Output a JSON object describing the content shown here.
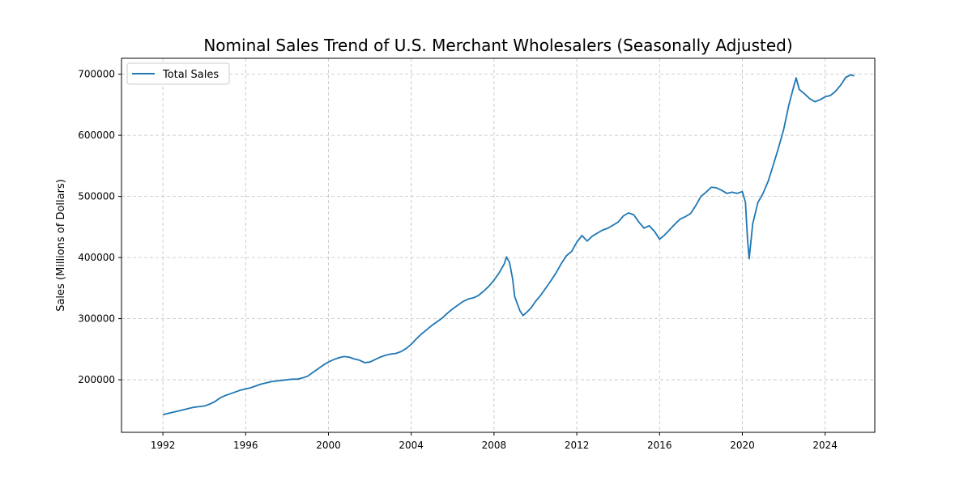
{
  "chart_data": {
    "type": "line",
    "title": "Nominal Sales Trend of U.S. Merchant Wholesalers (Seasonally Adjusted)",
    "xlabel": "",
    "ylabel": "Sales (Millions of Dollars)",
    "xlim": [
      1990.0,
      2026.4
    ],
    "ylim": [
      114000,
      726000
    ],
    "grid": true,
    "grid_style": "dashed",
    "legend_position": "top-left",
    "x_ticks": [
      1992,
      1996,
      2000,
      2004,
      2008,
      2012,
      2016,
      2020,
      2024
    ],
    "x_tick_labels": [
      "1992",
      "1996",
      "2000",
      "2004",
      "2008",
      "2012",
      "2016",
      "2020",
      "2024"
    ],
    "y_ticks": [
      200000,
      300000,
      400000,
      500000,
      600000,
      700000
    ],
    "y_tick_labels": [
      "200000",
      "300000",
      "400000",
      "500000",
      "600000",
      "700000"
    ],
    "series": [
      {
        "name": "Total Sales",
        "color": "#1f77b4",
        "points": [
          [
            1992.0,
            143000
          ],
          [
            1992.25,
            145000
          ],
          [
            1992.5,
            147000
          ],
          [
            1992.75,
            149000
          ],
          [
            1993.0,
            151000
          ],
          [
            1993.25,
            153000
          ],
          [
            1993.5,
            155000
          ],
          [
            1993.75,
            156000
          ],
          [
            1994.0,
            157000
          ],
          [
            1994.25,
            160000
          ],
          [
            1994.5,
            164000
          ],
          [
            1994.75,
            170000
          ],
          [
            1995.0,
            174000
          ],
          [
            1995.25,
            177000
          ],
          [
            1995.5,
            180000
          ],
          [
            1995.75,
            183000
          ],
          [
            1996.0,
            185000
          ],
          [
            1996.25,
            187000
          ],
          [
            1996.5,
            190000
          ],
          [
            1996.75,
            193000
          ],
          [
            1997.0,
            195000
          ],
          [
            1997.25,
            197000
          ],
          [
            1997.5,
            198000
          ],
          [
            1997.75,
            199000
          ],
          [
            1998.0,
            200000
          ],
          [
            1998.25,
            201000
          ],
          [
            1998.5,
            201000
          ],
          [
            1998.75,
            203000
          ],
          [
            1999.0,
            206000
          ],
          [
            1999.25,
            212000
          ],
          [
            1999.5,
            218000
          ],
          [
            1999.75,
            224000
          ],
          [
            2000.0,
            229000
          ],
          [
            2000.25,
            233000
          ],
          [
            2000.5,
            236000
          ],
          [
            2000.75,
            238000
          ],
          [
            2001.0,
            237000
          ],
          [
            2001.25,
            234000
          ],
          [
            2001.5,
            232000
          ],
          [
            2001.75,
            228000
          ],
          [
            2002.0,
            229000
          ],
          [
            2002.25,
            233000
          ],
          [
            2002.5,
            237000
          ],
          [
            2002.75,
            240000
          ],
          [
            2003.0,
            242000
          ],
          [
            2003.25,
            243000
          ],
          [
            2003.5,
            246000
          ],
          [
            2003.75,
            251000
          ],
          [
            2004.0,
            258000
          ],
          [
            2004.25,
            267000
          ],
          [
            2004.5,
            275000
          ],
          [
            2004.75,
            282000
          ],
          [
            2005.0,
            289000
          ],
          [
            2005.25,
            295000
          ],
          [
            2005.5,
            301000
          ],
          [
            2005.75,
            309000
          ],
          [
            2006.0,
            316000
          ],
          [
            2006.25,
            322000
          ],
          [
            2006.5,
            328000
          ],
          [
            2006.75,
            332000
          ],
          [
            2007.0,
            334000
          ],
          [
            2007.25,
            338000
          ],
          [
            2007.5,
            345000
          ],
          [
            2007.75,
            353000
          ],
          [
            2008.0,
            363000
          ],
          [
            2008.25,
            375000
          ],
          [
            2008.5,
            390000
          ],
          [
            2008.6,
            401000
          ],
          [
            2008.75,
            392000
          ],
          [
            2008.9,
            365000
          ],
          [
            2009.0,
            336000
          ],
          [
            2009.25,
            313000
          ],
          [
            2009.4,
            305000
          ],
          [
            2009.6,
            311000
          ],
          [
            2009.8,
            318000
          ],
          [
            2010.0,
            328000
          ],
          [
            2010.25,
            338000
          ],
          [
            2010.5,
            350000
          ],
          [
            2010.75,
            362000
          ],
          [
            2011.0,
            375000
          ],
          [
            2011.25,
            390000
          ],
          [
            2011.5,
            403000
          ],
          [
            2011.75,
            410000
          ],
          [
            2012.0,
            425000
          ],
          [
            2012.25,
            436000
          ],
          [
            2012.5,
            427000
          ],
          [
            2012.75,
            435000
          ],
          [
            2013.0,
            440000
          ],
          [
            2013.25,
            445000
          ],
          [
            2013.5,
            448000
          ],
          [
            2013.75,
            453000
          ],
          [
            2014.0,
            458000
          ],
          [
            2014.25,
            468000
          ],
          [
            2014.5,
            473000
          ],
          [
            2014.75,
            470000
          ],
          [
            2015.0,
            458000
          ],
          [
            2015.25,
            448000
          ],
          [
            2015.5,
            452000
          ],
          [
            2015.75,
            443000
          ],
          [
            2016.0,
            430000
          ],
          [
            2016.25,
            437000
          ],
          [
            2016.5,
            446000
          ],
          [
            2016.75,
            455000
          ],
          [
            2017.0,
            463000
          ],
          [
            2017.25,
            467000
          ],
          [
            2017.5,
            472000
          ],
          [
            2017.75,
            485000
          ],
          [
            2018.0,
            500000
          ],
          [
            2018.25,
            507000
          ],
          [
            2018.5,
            515000
          ],
          [
            2018.75,
            514000
          ],
          [
            2019.0,
            510000
          ],
          [
            2019.25,
            505000
          ],
          [
            2019.5,
            507000
          ],
          [
            2019.75,
            505000
          ],
          [
            2020.0,
            508000
          ],
          [
            2020.15,
            490000
          ],
          [
            2020.25,
            430000
          ],
          [
            2020.33,
            398000
          ],
          [
            2020.5,
            455000
          ],
          [
            2020.75,
            490000
          ],
          [
            2021.0,
            505000
          ],
          [
            2021.25,
            525000
          ],
          [
            2021.5,
            552000
          ],
          [
            2021.75,
            580000
          ],
          [
            2022.0,
            610000
          ],
          [
            2022.25,
            650000
          ],
          [
            2022.5,
            682000
          ],
          [
            2022.6,
            694000
          ],
          [
            2022.75,
            675000
          ],
          [
            2023.0,
            668000
          ],
          [
            2023.25,
            660000
          ],
          [
            2023.5,
            655000
          ],
          [
            2023.75,
            658000
          ],
          [
            2024.0,
            663000
          ],
          [
            2024.25,
            665000
          ],
          [
            2024.5,
            672000
          ],
          [
            2024.75,
            682000
          ],
          [
            2025.0,
            695000
          ],
          [
            2025.25,
            699000
          ],
          [
            2025.4,
            697000
          ]
        ]
      }
    ]
  }
}
